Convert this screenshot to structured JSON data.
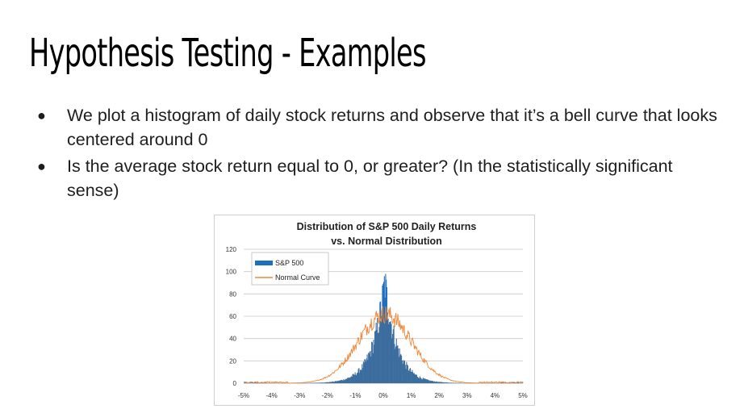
{
  "slide": {
    "title": "Hypothesis Testing - Examples",
    "bullets": [
      "We plot a histogram of daily stock returns and observe that it’s a bell curve that looks centered around 0",
      "Is the average stock return equal to 0, or greater? (In the statistically significant sense)"
    ]
  },
  "colors": {
    "sp500": "#1f6fc1",
    "normal": "#f0883a",
    "overlap": "#3b6d9e",
    "grid": "#c9c9c9"
  },
  "chart_data": {
    "type": "bar",
    "title": "Distribution of S&P 500 Daily Returns",
    "subtitle": "vs. Normal Distribution",
    "ylim": [
      0,
      120
    ],
    "yticks": [
      "0",
      "20",
      "40",
      "60",
      "80",
      "100",
      "120"
    ],
    "xlim": [
      -5,
      5
    ],
    "xticks": [
      "-5%",
      "-4%",
      "-3%",
      "-2%",
      "-1%",
      "0%",
      "1%",
      "2%",
      "3%",
      "4%",
      "5%"
    ],
    "legend_position": "top-left",
    "series": [
      {
        "name": "S&P 500",
        "kind": "bar",
        "peak": 112,
        "center_pct": 0.05,
        "sigma_pct": 0.55
      },
      {
        "name": "Normal Curve",
        "kind": "line",
        "peak": 62,
        "center_pct": 0.05,
        "sigma_pct": 0.95
      }
    ]
  }
}
